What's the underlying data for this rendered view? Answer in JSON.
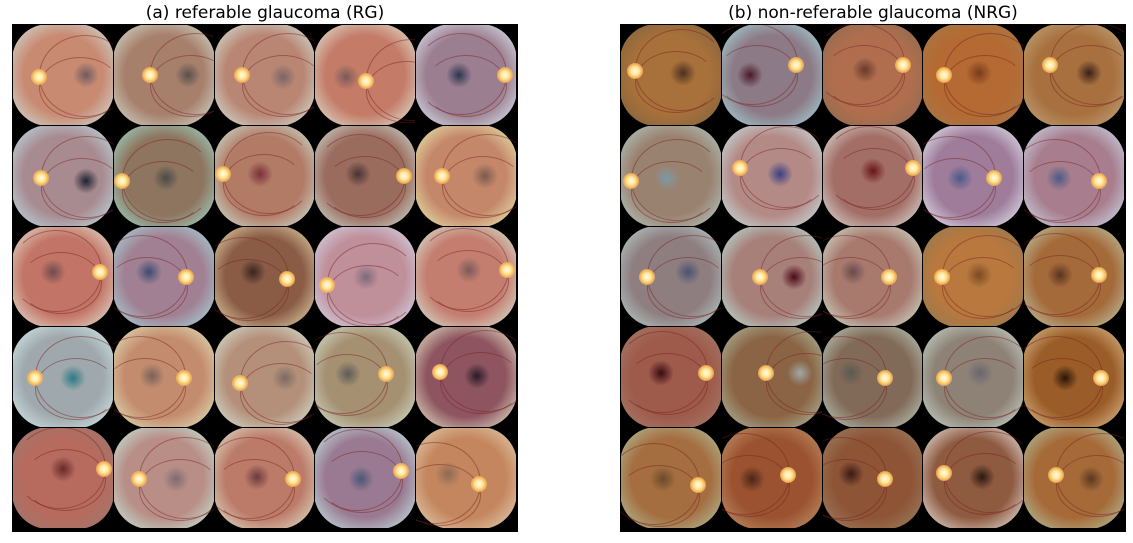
{
  "panels": [
    {
      "title": "(a) referable glaucoma (RG)",
      "images": [
        {
          "base": "#c98a72",
          "rim": "#cfe8e4",
          "disc": [
            0.26,
            0.52
          ],
          "macula": [
            0.72,
            0.5
          ],
          "dark": "#6f5a5e"
        },
        {
          "base": "#a7806c",
          "rim": "#d8e6da",
          "disc": [
            0.36,
            0.5
          ],
          "macula": [
            0.74,
            0.5
          ],
          "dark": "#5b4f4a"
        },
        {
          "base": "#b98673",
          "rim": "#d6efe8",
          "disc": [
            0.27,
            0.5
          ],
          "macula": [
            0.68,
            0.52
          ],
          "dark": "#7a6466"
        },
        {
          "base": "#c47b68",
          "rim": "#e2f2e0",
          "disc": [
            0.5,
            0.56
          ],
          "macula": [
            0.3,
            0.52
          ],
          "dark": "#7a5a5a"
        },
        {
          "base": "#9b7e8f",
          "rim": "#e4f4ff",
          "disc": [
            0.88,
            0.5
          ],
          "macula": [
            0.42,
            0.5
          ],
          "dark": "#2e3550"
        },
        {
          "base": "#a88b90",
          "rim": "#bfe8f0",
          "disc": [
            0.28,
            0.52
          ],
          "macula": [
            0.72,
            0.55
          ],
          "dark": "#1d2130"
        },
        {
          "base": "#8e7560",
          "rim": "#9fe6d6",
          "disc": [
            0.08,
            0.55
          ],
          "macula": [
            0.52,
            0.52
          ],
          "dark": "#4a4b48"
        },
        {
          "base": "#b27b66",
          "rim": "#cfefe2",
          "disc": [
            0.08,
            0.48
          ],
          "macula": [
            0.45,
            0.48
          ],
          "dark": "#7a2e3a"
        },
        {
          "base": "#9a6c5e",
          "rim": "#d6e8e0",
          "disc": [
            0.88,
            0.5
          ],
          "macula": [
            0.42,
            0.48
          ],
          "dark": "#4a3232"
        },
        {
          "base": "#c4876a",
          "rim": "#eef6b8",
          "disc": [
            0.26,
            0.5
          ],
          "macula": [
            0.68,
            0.5
          ],
          "dark": "#7a5a4e"
        },
        {
          "base": "#c27566",
          "rim": "#e6eee0",
          "disc": [
            0.86,
            0.45
          ],
          "macula": [
            0.4,
            0.45
          ],
          "dark": "#6e4a4e"
        },
        {
          "base": "#a08092",
          "rim": "#a9e2e8",
          "disc": [
            0.72,
            0.5
          ],
          "macula": [
            0.35,
            0.45
          ],
          "dark": "#3b4c72"
        },
        {
          "base": "#8a5c46",
          "rim": "#f0e2b4",
          "disc": [
            0.72,
            0.52
          ],
          "macula": [
            0.38,
            0.45
          ],
          "dark": "#3a2420"
        },
        {
          "base": "#bf8f9a",
          "rim": "#d8e2f4",
          "disc": [
            0.12,
            0.58
          ],
          "macula": [
            0.5,
            0.5
          ],
          "dark": "#7e6a7a"
        },
        {
          "base": "#c47e70",
          "rim": "#d8f2e2",
          "disc": [
            0.9,
            0.43
          ],
          "macula": [
            0.52,
            0.43
          ],
          "dark": "#7a5a5a"
        },
        {
          "base": "#9fa8ac",
          "rim": "#d8f2f4",
          "disc": [
            0.22,
            0.5
          ],
          "macula": [
            0.6,
            0.5
          ],
          "dark": "#2a7a86"
        },
        {
          "base": "#c48c6e",
          "rim": "#e4eec4",
          "disc": [
            0.7,
            0.5
          ],
          "macula": [
            0.38,
            0.48
          ],
          "dark": "#7a6258"
        },
        {
          "base": "#b4907a",
          "rim": "#dceee2",
          "disc": [
            0.25,
            0.55
          ],
          "macula": [
            0.7,
            0.5
          ],
          "dark": "#7a6a62"
        },
        {
          "base": "#a59072",
          "rim": "#d8ead8",
          "disc": [
            0.7,
            0.46
          ],
          "macula": [
            0.32,
            0.46
          ],
          "dark": "#5e5a56"
        },
        {
          "base": "#8e5560",
          "rim": "#f2f6d6",
          "disc": [
            0.24,
            0.44
          ],
          "macula": [
            0.6,
            0.48
          ],
          "dark": "#2a1a28"
        },
        {
          "base": "#b66b5e",
          "rim": "#9a7a70",
          "disc": [
            0.9,
            0.4
          ],
          "macula": [
            0.5,
            0.4
          ],
          "dark": "#6a2828"
        },
        {
          "base": "#b88e86",
          "rim": "#c8f2e6",
          "disc": [
            0.25,
            0.5
          ],
          "macula": [
            0.62,
            0.5
          ],
          "dark": "#7e6a72"
        },
        {
          "base": "#bc7a68",
          "rim": "#e2efd8",
          "disc": [
            0.78,
            0.5
          ],
          "macula": [
            0.42,
            0.48
          ],
          "dark": "#6a3a3e"
        },
        {
          "base": "#9a7a92",
          "rim": "#c8f4f0",
          "disc": [
            0.85,
            0.42
          ],
          "macula": [
            0.45,
            0.5
          ],
          "dark": "#4a5676"
        },
        {
          "base": "#c4865e",
          "rim": "#e6d8bc",
          "disc": [
            0.62,
            0.55
          ],
          "macula": [
            0.32,
            0.45
          ],
          "dark": "#8a6a54"
        }
      ]
    },
    {
      "title": "(b) non-referable glaucoma (NRG)",
      "images": [
        {
          "base": "#a8703a",
          "rim": "#7a6240",
          "disc": [
            0.14,
            0.46
          ],
          "macula": [
            0.62,
            0.48
          ],
          "dark": "#4a3020"
        },
        {
          "base": "#8c7a86",
          "rim": "#a8e2e6",
          "disc": [
            0.74,
            0.4
          ],
          "macula": [
            0.28,
            0.5
          ],
          "dark": "#4a1a28"
        },
        {
          "base": "#b06e4e",
          "rim": "#8a6a52",
          "disc": [
            0.8,
            0.4
          ],
          "macula": [
            0.42,
            0.45
          ],
          "dark": "#6a3a2a"
        },
        {
          "base": "#b46a32",
          "rim": "#a47a4e",
          "disc": [
            0.2,
            0.5
          ],
          "macula": [
            0.55,
            0.48
          ],
          "dark": "#7a3a1a"
        },
        {
          "base": "#a8703e",
          "rim": "#c2aa82",
          "disc": [
            0.26,
            0.4
          ],
          "macula": [
            0.64,
            0.48
          ],
          "dark": "#3a2018"
        },
        {
          "base": "#9a8270",
          "rim": "#b4d2cc",
          "disc": [
            0.1,
            0.55
          ],
          "macula": [
            0.46,
            0.52
          ],
          "dark": "#7c9aa4"
        },
        {
          "base": "#b48a86",
          "rim": "#c8eef0",
          "disc": [
            0.18,
            0.42
          ],
          "macula": [
            0.58,
            0.48
          ],
          "dark": "#3a3e86"
        },
        {
          "base": "#a26e66",
          "rim": "#e4ece8",
          "disc": [
            0.9,
            0.42
          ],
          "macula": [
            0.5,
            0.45
          ],
          "dark": "#6a1414"
        },
        {
          "base": "#9e7c9a",
          "rim": "#eef8ff",
          "disc": [
            0.7,
            0.52
          ],
          "macula": [
            0.36,
            0.52
          ],
          "dark": "#4a5a8a"
        },
        {
          "base": "#a87e8e",
          "rim": "#cfe6f6",
          "disc": [
            0.74,
            0.55
          ],
          "macula": [
            0.35,
            0.52
          ],
          "dark": "#4a5a86"
        },
        {
          "base": "#8e7e80",
          "rim": "#bcd8d6",
          "disc": [
            0.26,
            0.5
          ],
          "macula": [
            0.66,
            0.45
          ],
          "dark": "#4a5270"
        },
        {
          "base": "#a8807a",
          "rim": "#bdeee6",
          "disc": [
            0.38,
            0.5
          ],
          "macula": [
            0.72,
            0.5
          ],
          "dark": "#4a0a18"
        },
        {
          "base": "#a87a6e",
          "rim": "#d6ecdc",
          "disc": [
            0.66,
            0.5
          ],
          "macula": [
            0.3,
            0.45
          ],
          "dark": "#6a4a4e"
        },
        {
          "base": "#b8783e",
          "rim": "#8e7a56",
          "disc": [
            0.18,
            0.5
          ],
          "macula": [
            0.55,
            0.48
          ],
          "dark": "#7a4a22"
        },
        {
          "base": "#a46a3a",
          "rim": "#c2d2b6",
          "disc": [
            0.74,
            0.48
          ],
          "macula": [
            0.36,
            0.48
          ],
          "dark": "#5a3420"
        },
        {
          "base": "#9e5a4a",
          "rim": "#a48070",
          "disc": [
            0.84,
            0.45
          ],
          "macula": [
            0.4,
            0.45
          ],
          "dark": "#3a0a14"
        },
        {
          "base": "#8a6444",
          "rim": "#b4c4ac",
          "disc": [
            0.44,
            0.45
          ],
          "macula": [
            0.78,
            0.45
          ],
          "dark": "#a0a8a8"
        },
        {
          "base": "#826a58",
          "rim": "#c2d6c8",
          "disc": [
            0.62,
            0.5
          ],
          "macula": [
            0.28,
            0.45
          ],
          "dark": "#5a5a50"
        },
        {
          "base": "#8e8276",
          "rim": "#cfe0d8",
          "disc": [
            0.2,
            0.5
          ],
          "macula": [
            0.56,
            0.45
          ],
          "dark": "#6a6470"
        },
        {
          "base": "#9a5c28",
          "rim": "#e2c898",
          "disc": [
            0.76,
            0.5
          ],
          "macula": [
            0.4,
            0.5
          ],
          "dark": "#2a1408"
        },
        {
          "base": "#a46e40",
          "rim": "#b4c8a6",
          "disc": [
            0.76,
            0.56
          ],
          "macula": [
            0.42,
            0.5
          ],
          "dark": "#6a4a2a"
        },
        {
          "base": "#9a5230",
          "rim": "#c49a70",
          "disc": [
            0.66,
            0.46
          ],
          "macula": [
            0.3,
            0.5
          ],
          "dark": "#4a2418"
        },
        {
          "base": "#8e5436",
          "rim": "#9e8468",
          "disc": [
            0.62,
            0.5
          ],
          "macula": [
            0.28,
            0.45
          ],
          "dark": "#3a1a14"
        },
        {
          "base": "#8e5a40",
          "rim": "#f4f4f4",
          "disc": [
            0.2,
            0.44
          ],
          "macula": [
            0.58,
            0.48
          ],
          "dark": "#2a1810"
        },
        {
          "base": "#a66a38",
          "rim": "#b4ccae",
          "disc": [
            0.32,
            0.46
          ],
          "macula": [
            0.66,
            0.5
          ],
          "dark": "#5a3820"
        }
      ]
    }
  ]
}
